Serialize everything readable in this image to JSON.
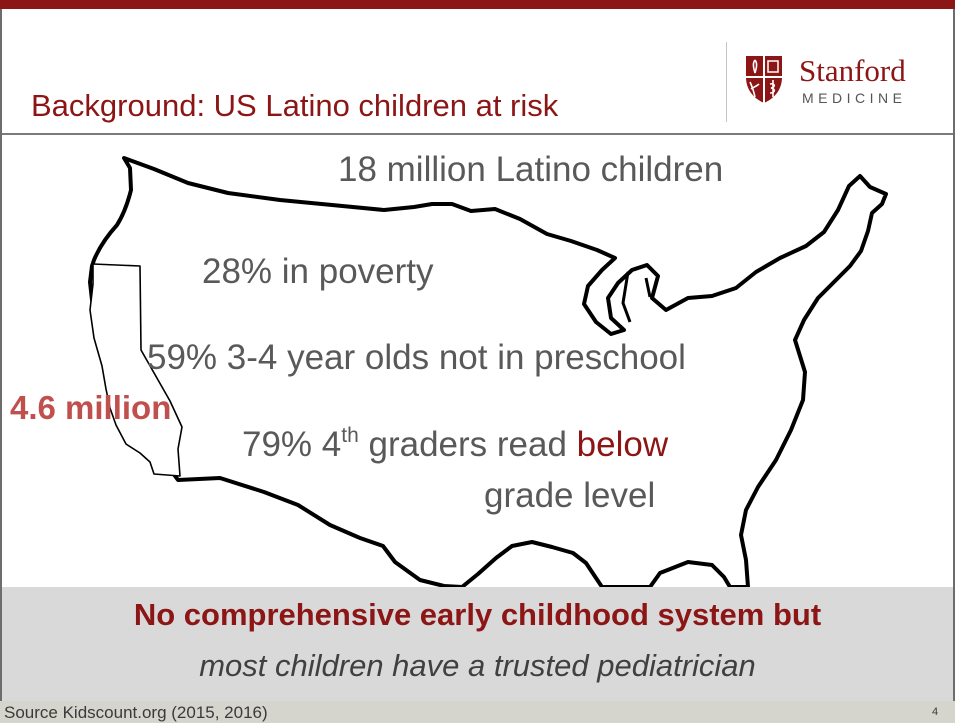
{
  "slide": {
    "title": "Background: US Latino children at risk",
    "logo": {
      "wordmark": "Stanford",
      "subtitle": "MEDICINE"
    },
    "stats": {
      "children": "18 million Latino children",
      "poverty": "28% in poverty",
      "preschool": "59% 3-4 year olds not in preschool",
      "reading_prefix": "79% 4",
      "reading_sup": "th",
      "reading_middle": " graders read ",
      "reading_highlight": "below",
      "reading_line2": "grade level"
    },
    "california_label": "4.6 million",
    "banner": {
      "bold": "No comprehensive early childhood system but",
      "italic": "most children have a trusted pediatrician"
    },
    "footer": {
      "source": "Source Kidscount.org (2015, 2016)",
      "page_number": "4"
    }
  },
  "colors": {
    "brand_red": "#8c1515",
    "highlight_red": "#c0504d",
    "stat_gray": "#595959",
    "banner_gray": "#d9d9d9"
  },
  "icons": [
    "stanford-shield-icon",
    "us-map-outline",
    "california-outline"
  ]
}
